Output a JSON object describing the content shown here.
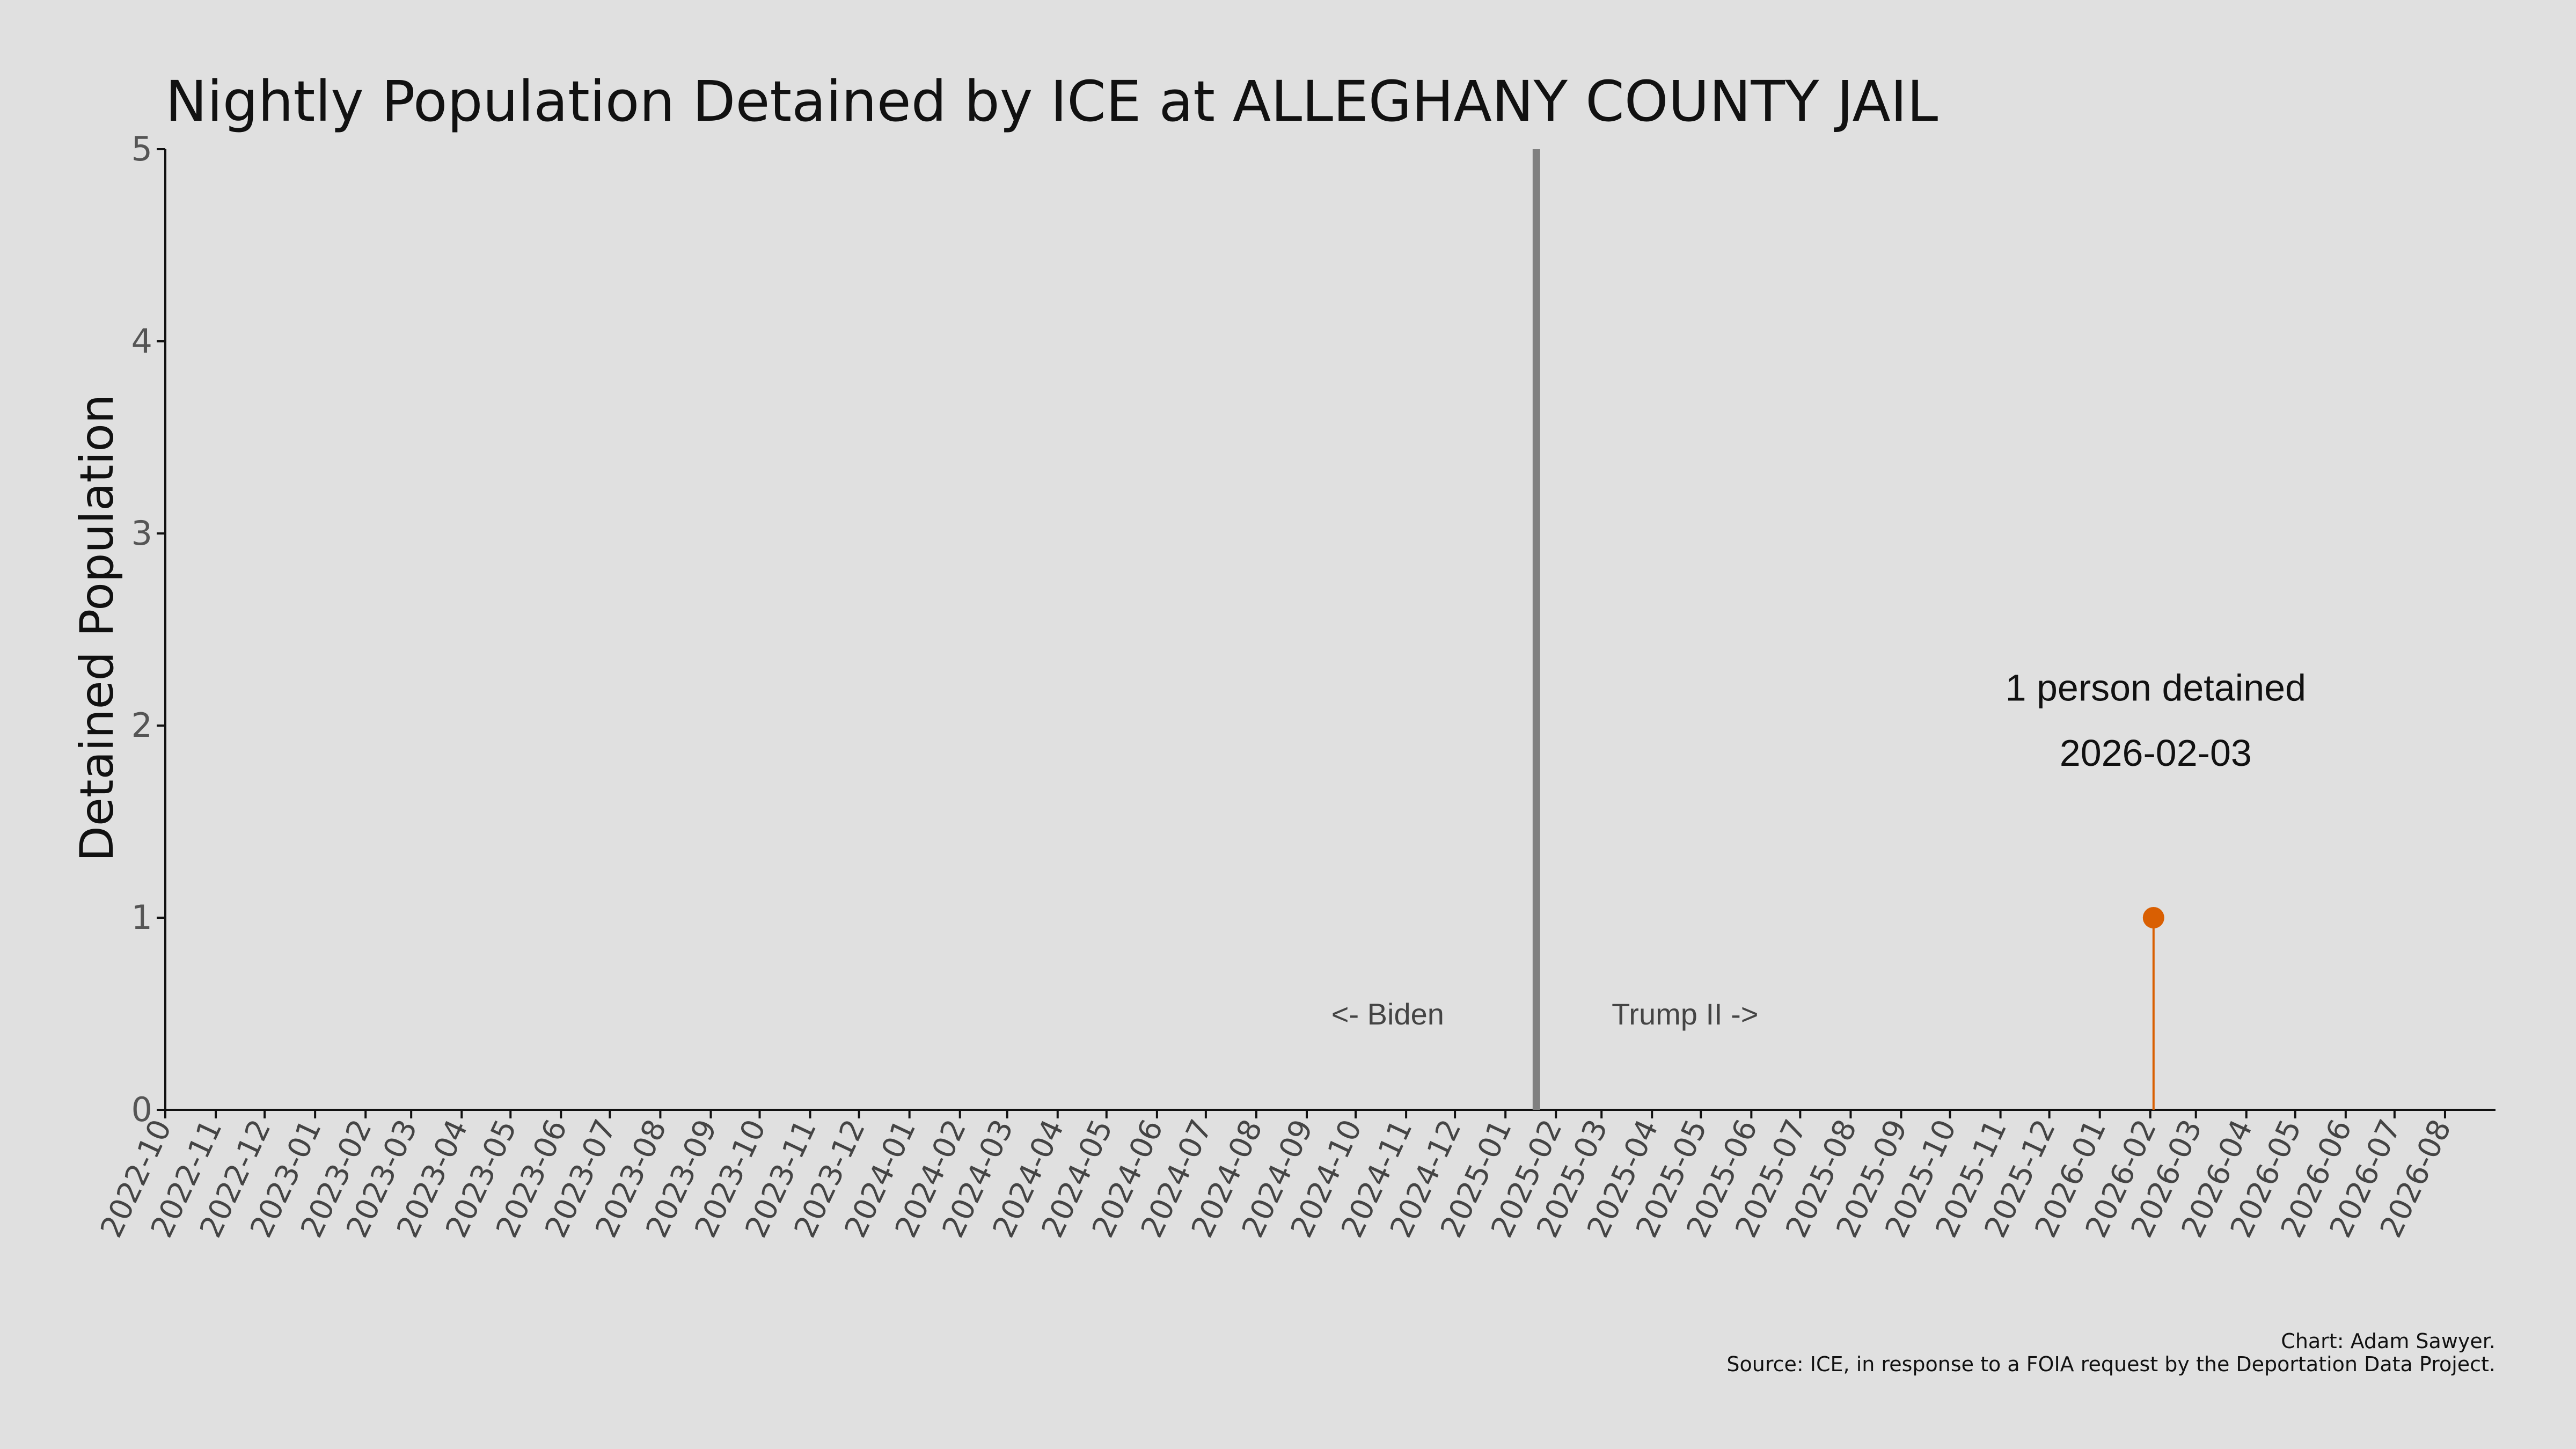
{
  "chart_data": {
    "type": "line",
    "title": "Nightly Population Detained by ICE at ALLEGHANY COUNTY JAIL",
    "xlabel": "",
    "ylabel": "Detained Population",
    "ylim": [
      0,
      5
    ],
    "yticks": [
      0,
      1,
      2,
      3,
      4,
      5
    ],
    "xlim": [
      "2022-10-01",
      "2026-09-01"
    ],
    "xtick_labels": [
      "2022-10",
      "2022-11",
      "2022-12",
      "2023-01",
      "2023-02",
      "2023-03",
      "2023-04",
      "2023-05",
      "2023-06",
      "2023-07",
      "2023-08",
      "2023-09",
      "2023-10",
      "2023-11",
      "2023-12",
      "2024-01",
      "2024-02",
      "2024-03",
      "2024-04",
      "2024-05",
      "2024-06",
      "2024-07",
      "2024-08",
      "2024-09",
      "2024-10",
      "2024-11",
      "2024-12",
      "2025-01",
      "2025-02",
      "2025-03",
      "2025-04",
      "2025-05",
      "2025-06",
      "2025-07",
      "2025-08",
      "2025-09",
      "2025-10",
      "2025-11",
      "2025-12",
      "2026-01",
      "2026-02",
      "2026-03",
      "2026-04",
      "2026-05",
      "2026-06",
      "2026-07",
      "2026-08"
    ],
    "series": [
      {
        "x": [
          "2026-02-03"
        ],
        "y": [
          1
        ],
        "color": "#d95f02"
      }
    ],
    "reference_line": {
      "x": "2025-01-20",
      "color": "#808080"
    },
    "era_labels": {
      "left": "<- Biden",
      "right": "Trump II ->"
    },
    "annotation": {
      "line1": "1 person detained",
      "line2": "2026-02-03"
    },
    "grid": false
  },
  "credits": {
    "line1": "Chart: Adam Sawyer.",
    "line2": "Source: ICE, in response to a FOIA request by the Deportation Data Project."
  }
}
